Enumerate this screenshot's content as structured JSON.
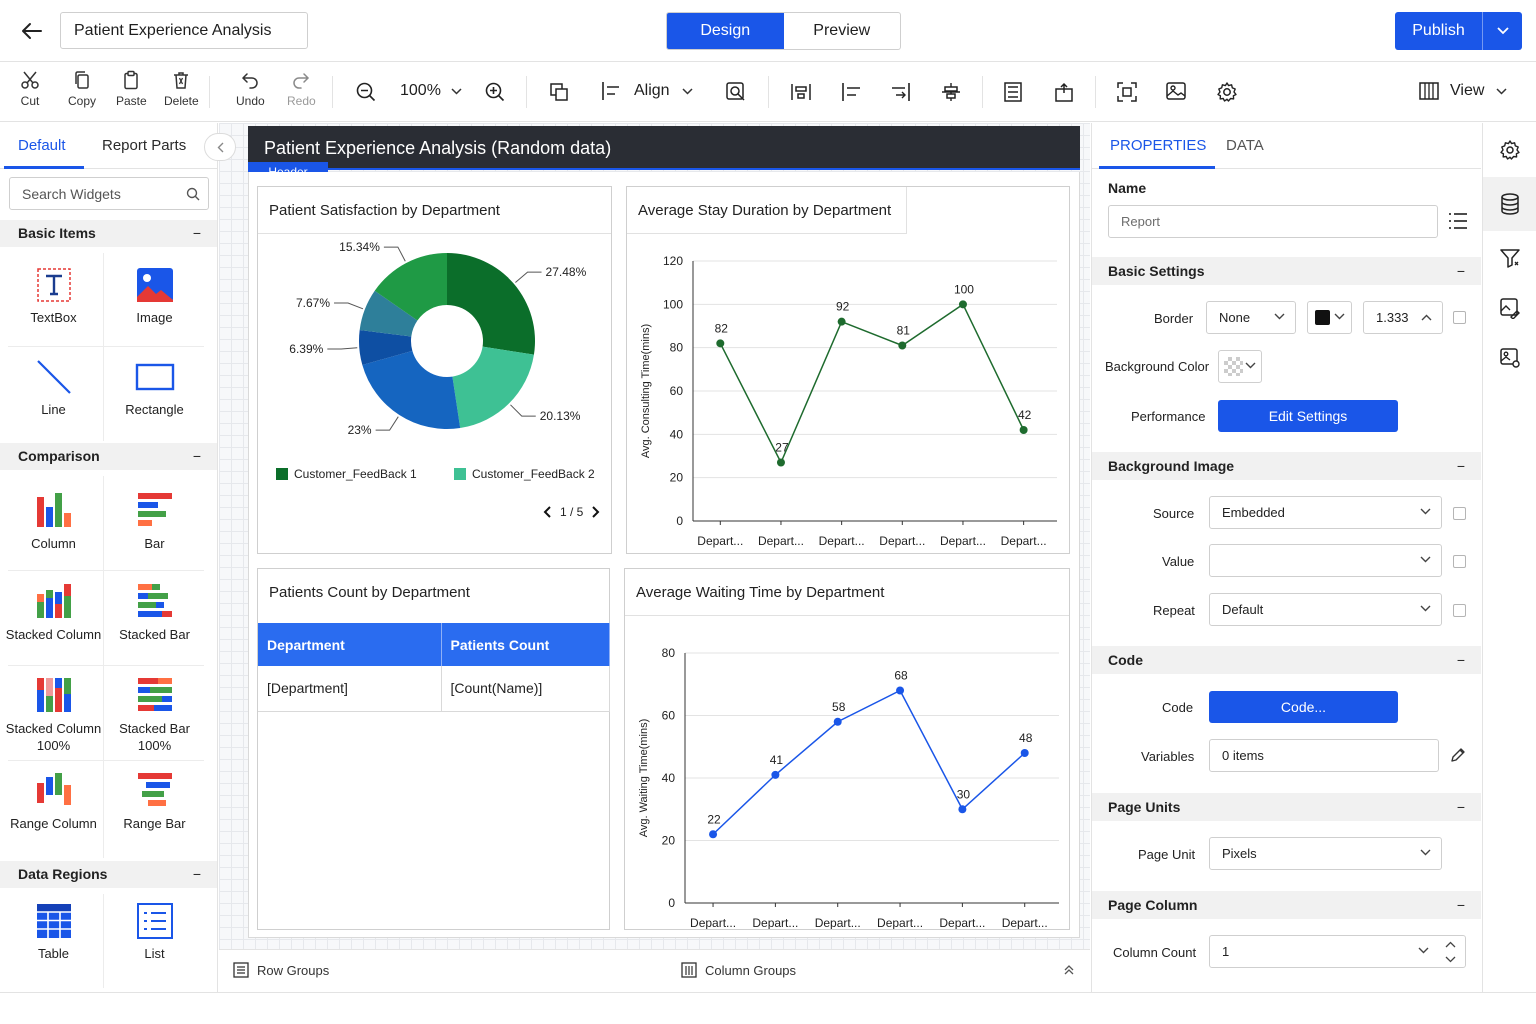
{
  "header": {
    "report_title": "Patient Experience Analysis",
    "modes": [
      "Design",
      "Preview"
    ],
    "active_mode": "Design",
    "publish_label": "Publish"
  },
  "toolbar": {
    "cut": "Cut",
    "copy": "Copy",
    "paste": "Paste",
    "delete": "Delete",
    "undo": "Undo",
    "redo": "Redo",
    "zoom": "100%",
    "align": "Align",
    "view": "View"
  },
  "left_panel": {
    "tabs": [
      "Default",
      "Report Parts"
    ],
    "search_placeholder": "Search Widgets",
    "categories": {
      "basic": {
        "title": "Basic Items",
        "items": [
          "TextBox",
          "Image",
          "Line",
          "Rectangle"
        ]
      },
      "comparison": {
        "title": "Comparison",
        "items": [
          "Column",
          "Bar",
          "Stacked Column",
          "Stacked Bar",
          "Stacked Column 100%",
          "Stacked Bar 100%",
          "Range Column",
          "Range Bar"
        ]
      },
      "data_regions": {
        "title": "Data Regions",
        "items": [
          "Table",
          "List"
        ]
      }
    },
    "collapse_symbol": "−"
  },
  "canvas": {
    "report_header": "Patient Experience Analysis (Random data)",
    "header_tag": "Header",
    "cards": {
      "satisfaction": {
        "title": "Patient Satisfaction by Department",
        "pager": "1 / 5"
      },
      "stay": {
        "title": "Average Stay Duration by Department"
      },
      "count": {
        "title": "Patients Count by Department",
        "columns": [
          "Department",
          "Patients Count"
        ],
        "row": [
          "[Department]",
          "[Count(Name)]"
        ]
      },
      "waiting": {
        "title": "Average Waiting Time by Department"
      }
    },
    "row_groups": "Row Groups",
    "column_groups": "Column Groups"
  },
  "chart_data": [
    {
      "type": "pie",
      "title": "Patient Satisfaction by Department",
      "slices": [
        {
          "label": "27.48%",
          "value": 27.48,
          "color": "#0b6e2a"
        },
        {
          "label": "20.13%",
          "value": 20.13,
          "color": "#3ec194"
        },
        {
          "label": "23%",
          "value": 23,
          "color": "#1565c0"
        },
        {
          "label": "6.39%",
          "value": 6.39,
          "color": "#0e4fa3"
        },
        {
          "label": "7.67%",
          "value": 7.67,
          "color": "#2e7f9a"
        },
        {
          "label": "15.34%",
          "value": 15.34,
          "color": "#1f9a45"
        }
      ],
      "legend": [
        "Customer_FeedBack 1",
        "Customer_FeedBack 2"
      ],
      "legend_colors": [
        "#0b6e2a",
        "#3ec194"
      ],
      "donut": true
    },
    {
      "type": "line",
      "title": "Average Stay Duration by Department",
      "ylabel": "Avg. Consulting Time(mins)",
      "categories": [
        "Depart...",
        "Depart...",
        "Depart...",
        "Depart...",
        "Depart...",
        "Depart..."
      ],
      "values": [
        82,
        27,
        92,
        81,
        100,
        42
      ],
      "ylim": [
        0,
        120
      ],
      "yticks": [
        0,
        20,
        40,
        60,
        80,
        100,
        120
      ],
      "color": "#1e6b2e"
    },
    {
      "type": "line",
      "title": "Average Waiting Time by Department",
      "ylabel": "Avg. Waiting Time(mins)",
      "categories": [
        "Depart...",
        "Depart...",
        "Depart...",
        "Depart...",
        "Depart...",
        "Depart..."
      ],
      "values": [
        22,
        41,
        58,
        68,
        30,
        48
      ],
      "ylim": [
        0,
        80
      ],
      "yticks": [
        0,
        20,
        40,
        60,
        80
      ],
      "color": "#1a56e8"
    }
  ],
  "properties": {
    "tabs": [
      "PROPERTIES",
      "DATA"
    ],
    "name_label": "Name",
    "name_placeholder": "Report",
    "basic_settings": "Basic Settings",
    "border_label": "Border",
    "border_value": "None",
    "border_width": "1.333",
    "bg_color_label": "Background Color",
    "performance_label": "Performance",
    "edit_settings": "Edit Settings",
    "background_image": "Background Image",
    "source_label": "Source",
    "source_value": "Embedded",
    "value_label": "Value",
    "value_value": "",
    "repeat_label": "Repeat",
    "repeat_value": "Default",
    "code_section": "Code",
    "code_label": "Code",
    "code_button": "Code...",
    "variables_label": "Variables",
    "variables_value": "0 items",
    "page_units": "Page Units",
    "page_unit_label": "Page Unit",
    "page_unit_value": "Pixels",
    "page_column": "Page Column",
    "column_count_label": "Column Count",
    "column_count_value": "1",
    "collapse_symbol": "−"
  }
}
